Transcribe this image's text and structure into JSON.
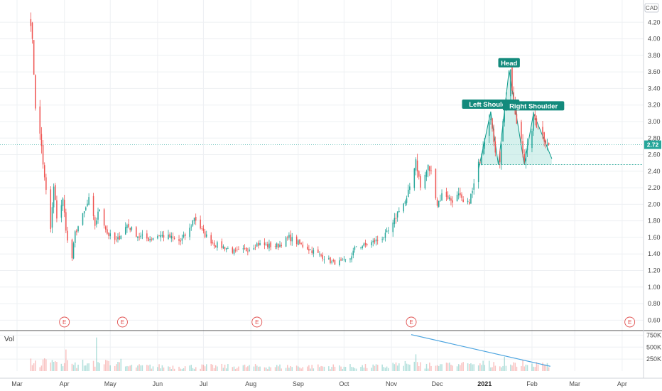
{
  "chart_data": {
    "type": "candlestick",
    "currency": "CAD",
    "price_axis": {
      "ylim": [
        0.5,
        4.4
      ],
      "ticks": [
        "0.60",
        "0.80",
        "1.00",
        "1.20",
        "1.40",
        "1.60",
        "1.80",
        "2.00",
        "2.20",
        "2.40",
        "2.60",
        "2.80",
        "3.00",
        "3.20",
        "3.40",
        "3.60",
        "3.80",
        "4.00",
        "4.20"
      ]
    },
    "volume_axis": {
      "title": "Vol",
      "ylim": [
        0,
        800000
      ],
      "ticks": [
        {
          "value": 250000,
          "label": "250K"
        },
        {
          "value": 500000,
          "label": "500K"
        },
        {
          "value": 750000,
          "label": "750K"
        }
      ]
    },
    "x_axis": {
      "start": "2020-03-01",
      "end": "2021-04-15",
      "ticks": [
        {
          "date": "2020-03-01",
          "label": "Mar"
        },
        {
          "date": "2020-04-01",
          "label": "Apr"
        },
        {
          "date": "2020-05-01",
          "label": "May"
        },
        {
          "date": "2020-06-01",
          "label": "Jun"
        },
        {
          "date": "2020-07-01",
          "label": "Jul"
        },
        {
          "date": "2020-08-01",
          "label": "Aug"
        },
        {
          "date": "2020-09-01",
          "label": "Sep"
        },
        {
          "date": "2020-10-01",
          "label": "Oct"
        },
        {
          "date": "2020-11-01",
          "label": "Nov"
        },
        {
          "date": "2020-12-01",
          "label": "Dec"
        },
        {
          "date": "2021-01-01",
          "label": "2021",
          "bold": true
        },
        {
          "date": "2021-02-01",
          "label": "Feb"
        },
        {
          "date": "2021-03-01",
          "label": "Mar"
        },
        {
          "date": "2021-04-01",
          "label": "Apr"
        }
      ]
    },
    "price_path": [
      [
        "2020-03-10",
        4.25
      ],
      [
        "2020-03-12",
        3.6
      ],
      [
        "2020-03-13",
        3.2
      ],
      [
        "2020-03-17",
        2.7
      ],
      [
        "2020-03-19",
        2.3
      ],
      [
        "2020-03-23",
        1.7
      ],
      [
        "2020-03-25",
        2.2
      ],
      [
        "2020-03-27",
        1.85
      ],
      [
        "2020-03-31",
        2.05
      ],
      [
        "2020-04-03",
        1.55
      ],
      [
        "2020-04-06",
        1.35
      ],
      [
        "2020-04-08",
        1.65
      ],
      [
        "2020-04-14",
        1.9
      ],
      [
        "2020-04-17",
        2.05
      ],
      [
        "2020-04-21",
        1.75
      ],
      [
        "2020-04-24",
        1.95
      ],
      [
        "2020-04-29",
        1.65
      ],
      [
        "2020-05-05",
        1.55
      ],
      [
        "2020-05-12",
        1.75
      ],
      [
        "2020-05-19",
        1.62
      ],
      [
        "2020-05-26",
        1.58
      ],
      [
        "2020-06-02",
        1.63
      ],
      [
        "2020-06-09",
        1.6
      ],
      [
        "2020-06-16",
        1.55
      ],
      [
        "2020-06-22",
        1.7
      ],
      [
        "2020-06-25",
        1.85
      ],
      [
        "2020-07-01",
        1.65
      ],
      [
        "2020-07-08",
        1.52
      ],
      [
        "2020-07-15",
        1.48
      ],
      [
        "2020-07-22",
        1.42
      ],
      [
        "2020-07-29",
        1.45
      ],
      [
        "2020-08-05",
        1.52
      ],
      [
        "2020-08-12",
        1.5
      ],
      [
        "2020-08-19",
        1.5
      ],
      [
        "2020-08-26",
        1.6
      ],
      [
        "2020-09-02",
        1.52
      ],
      [
        "2020-09-09",
        1.45
      ],
      [
        "2020-09-16",
        1.38
      ],
      [
        "2020-09-23",
        1.3
      ],
      [
        "2020-09-30",
        1.3
      ],
      [
        "2020-10-05",
        1.35
      ],
      [
        "2020-10-09",
        1.5
      ],
      [
        "2020-10-14",
        1.5
      ],
      [
        "2020-10-21",
        1.55
      ],
      [
        "2020-10-28",
        1.62
      ],
      [
        "2020-11-02",
        1.75
      ],
      [
        "2020-11-06",
        1.95
      ],
      [
        "2020-11-11",
        2.05
      ],
      [
        "2020-11-14",
        2.3
      ],
      [
        "2020-11-17",
        2.55
      ],
      [
        "2020-11-20",
        2.2
      ],
      [
        "2020-11-25",
        2.45
      ],
      [
        "2020-11-28",
        2.35
      ],
      [
        "2020-12-01",
        2.0
      ],
      [
        "2020-12-05",
        2.15
      ],
      [
        "2020-12-10",
        2.05
      ],
      [
        "2020-12-15",
        2.1
      ],
      [
        "2020-12-20",
        1.95
      ],
      [
        "2020-12-24",
        2.15
      ],
      [
        "2020-12-29",
        2.55
      ],
      [
        "2021-01-02",
        2.95
      ],
      [
        "2021-01-05",
        3.1
      ],
      [
        "2021-01-07",
        2.7
      ],
      [
        "2021-01-11",
        2.55
      ],
      [
        "2021-01-14",
        3.2
      ],
      [
        "2021-01-18",
        3.55
      ],
      [
        "2021-01-21",
        3.05
      ],
      [
        "2021-01-25",
        2.8
      ],
      [
        "2021-01-27",
        2.55
      ],
      [
        "2021-01-30",
        2.7
      ],
      [
        "2021-02-02",
        3.05
      ],
      [
        "2021-02-05",
        2.95
      ],
      [
        "2021-02-09",
        2.8
      ],
      [
        "2021-02-12",
        2.72
      ]
    ],
    "volume_peaks": [
      {
        "date": "2020-04-02",
        "value": 450000
      },
      {
        "date": "2020-04-22",
        "value": 700000
      },
      {
        "date": "2020-11-14",
        "value": 760000
      },
      {
        "date": "2020-11-17",
        "value": 350000
      },
      {
        "date": "2021-01-14",
        "value": 300000
      }
    ],
    "last_price": {
      "value": 2.72,
      "label": "2.72"
    },
    "neckline": {
      "value": 2.48
    },
    "pattern": {
      "name": "Head and Shoulders",
      "points": [
        {
          "date": "2020-12-28",
          "price": 2.42
        },
        {
          "date": "2021-01-05",
          "price": 3.12
        },
        {
          "date": "2021-01-10",
          "price": 2.48
        },
        {
          "date": "2021-01-17",
          "price": 3.62
        },
        {
          "date": "2021-01-27",
          "price": 2.48
        },
        {
          "date": "2021-02-02",
          "price": 3.1
        },
        {
          "date": "2021-02-14",
          "price": 2.55
        }
      ],
      "labels": [
        {
          "text": "Left Shoulder",
          "date": "2021-01-05",
          "price": 3.12
        },
        {
          "text": "Head",
          "date": "2021-01-17",
          "price": 3.62
        },
        {
          "text": "Right Shoulder",
          "date": "2021-02-02",
          "price": 3.1
        }
      ]
    },
    "volume_trendline": [
      {
        "date": "2020-11-14",
        "value": 760000
      },
      {
        "date": "2021-02-13",
        "value": 100000
      }
    ],
    "earnings_markers": [
      {
        "date": "2020-04-01",
        "label": "E"
      },
      {
        "date": "2020-05-09",
        "label": "E"
      },
      {
        "date": "2020-08-05",
        "label": "E"
      },
      {
        "date": "2020-11-14",
        "label": "E"
      },
      {
        "date": "2021-04-06",
        "label": "E"
      }
    ],
    "colors": {
      "up": "#26a69a",
      "down": "#ef5350",
      "pattern": "#0b9a8a",
      "pattern_fill": "#b5e6df",
      "label_bg": "#138a7c",
      "volume_trend": "#4aa3df",
      "earnings": "#e0504f",
      "grid": "#eef0f3"
    }
  }
}
